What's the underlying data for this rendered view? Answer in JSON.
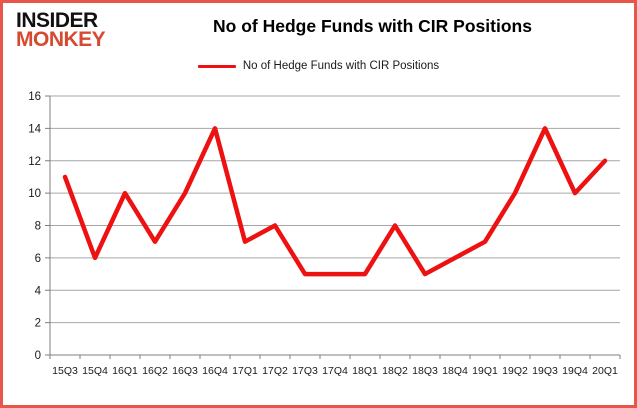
{
  "header": {
    "logo_line1": "INSIDER",
    "logo_line2": "MONKEY",
    "title": "No of Hedge Funds with CIR Positions"
  },
  "legend": {
    "label": "No of Hedge Funds with CIR Positions"
  },
  "colors": {
    "frame_border": "#e8564a",
    "logo_black": "#111111",
    "logo_red": "#d64a31",
    "series_line": "#ee1111",
    "gridline": "#a6a6a6",
    "axis": "#7f7f7f",
    "tick_label": "#1a1a1a"
  },
  "chart_data": {
    "type": "line",
    "title": "No of Hedge Funds with CIR Positions",
    "categories": [
      "15Q3",
      "15Q4",
      "16Q1",
      "16Q2",
      "16Q3",
      "16Q4",
      "17Q1",
      "17Q2",
      "17Q3",
      "17Q4",
      "18Q1",
      "18Q2",
      "18Q3",
      "18Q4",
      "19Q1",
      "19Q2",
      "19Q3",
      "19Q4",
      "20Q1"
    ],
    "series": [
      {
        "name": "No of Hedge Funds with CIR Positions",
        "values": [
          11,
          6,
          10,
          7,
          10,
          14,
          7,
          8,
          5,
          5,
          5,
          8,
          5,
          6,
          7,
          10,
          14,
          10,
          12
        ]
      }
    ],
    "xlabel": "",
    "ylabel": "",
    "ylim": [
      0,
      16
    ],
    "ytick_step": 2,
    "grid": "horizontal",
    "legend_position": "top-center"
  }
}
